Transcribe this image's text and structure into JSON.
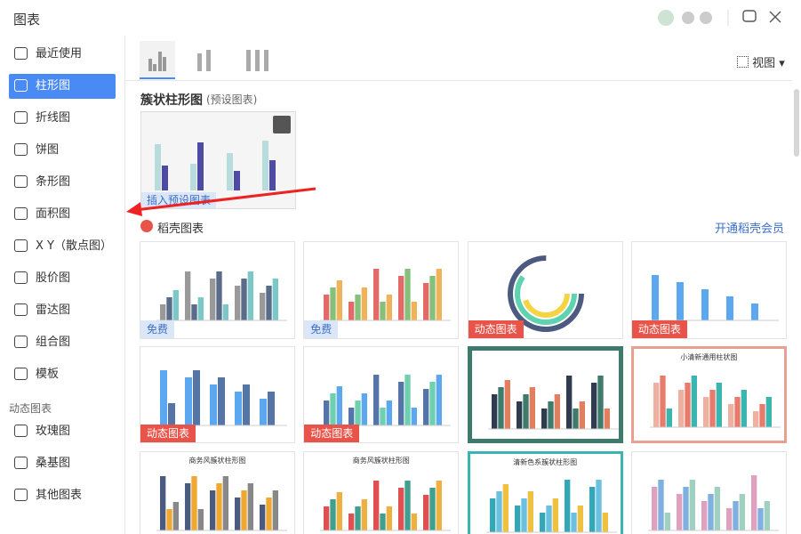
{
  "header": {
    "title": "图表"
  },
  "sidebar": {
    "items": [
      "最近使用",
      "柱形图",
      "折线图",
      "饼图",
      "条形图",
      "面积图",
      "X Y（散点图）",
      "股价图",
      "雷达图",
      "组合图",
      "模板"
    ],
    "section": "动态图表",
    "dynamic_items": [
      "玫瑰图",
      "桑基图",
      "其他图表"
    ]
  },
  "toolbar": {
    "view": "视图"
  },
  "preset": {
    "title": "簇状柱形图",
    "subtitle": "(预设图表)",
    "insert": "插入预设图表"
  },
  "store": {
    "title": "稻壳图表",
    "vip": "开通稻壳会员",
    "cards": [
      {
        "badge": "免费"
      },
      {
        "badge": "免费"
      },
      {
        "badge": "动态图表"
      },
      {
        "badge": "动态图表"
      },
      {
        "badge": "动态图表"
      },
      {
        "badge": "动态图表"
      },
      {},
      {
        "title": "小清新通用柱状图"
      },
      {
        "title": "商务风簇状柱形图"
      },
      {
        "title": "商务风簇状柱形图"
      },
      {
        "title": "清新色系簇状柱形图"
      },
      {}
    ]
  }
}
